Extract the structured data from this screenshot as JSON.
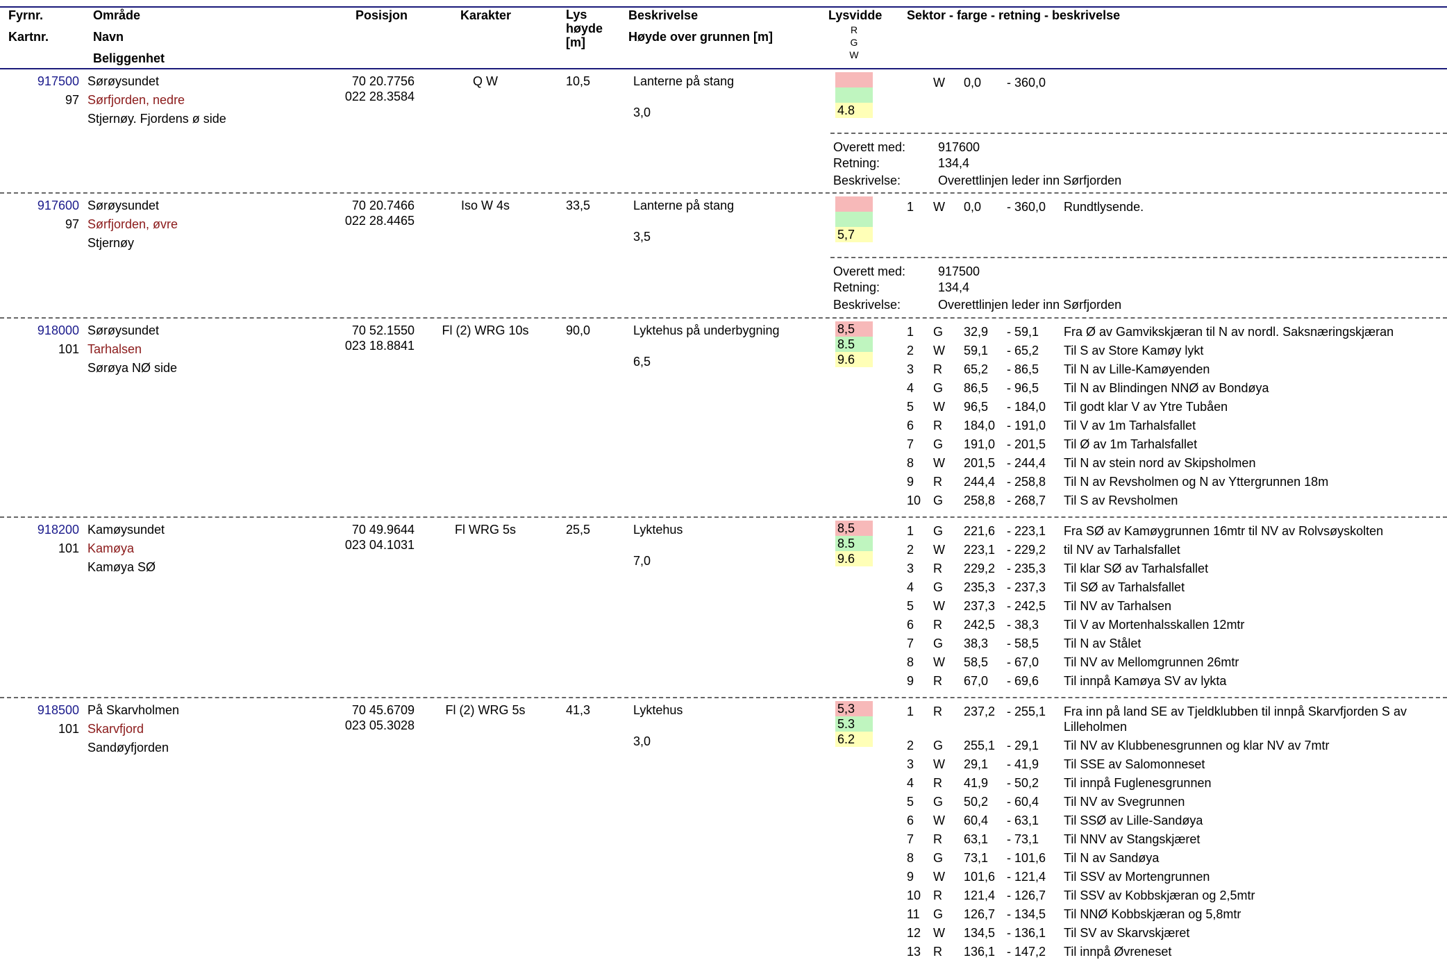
{
  "headers": {
    "fyrnr": "Fyrnr.",
    "kartnr": "Kartnr.",
    "omrade": "Område",
    "navn": "Navn",
    "beliggenhet": "Beliggenhet",
    "posisjon": "Posisjon",
    "karakter": "Karakter",
    "lys1": "Lys",
    "lys2": "høyde",
    "lys3": "[m]",
    "beskrivelse": "Beskrivelse",
    "hoyde": "Høyde over grunnen [m]",
    "lysvidde": "Lysvidde",
    "lysvidde_r": "R",
    "lysvidde_g": "G",
    "lysvidde_w": "W",
    "sektor": "Sektor - farge - retning - beskrivelse"
  },
  "labels": {
    "overett": "Overett med:",
    "retning": "Retning:",
    "beskrivelse": "Beskrivelse:"
  },
  "colors": {
    "header_rule": "#1a1a7a",
    "fyrnr_text": "#1b1b8c",
    "beliggenhet_text": "#8b1a1a",
    "range_red": "#f7b9b9",
    "range_green": "#bff5bf",
    "range_white": "#ffffb7"
  },
  "entries": [
    {
      "fyrnr": "917500",
      "kartnr": "97",
      "omrade": "Sørøysundet",
      "navn": "Sørfjorden, nedre",
      "beliggenhet": "Stjernøy. Fjordens ø side",
      "pos_lat": "70 20.7756",
      "pos_lon": "022 28.3584",
      "karakter": "Q W",
      "lyshoyde": "10,5",
      "beskrivelse": "Lanterne på stang",
      "hoyde": "3,0",
      "range_r": "",
      "range_g": "",
      "range_w": "4.8",
      "sectors": [
        {
          "n": "",
          "c": "W",
          "from": "0,0",
          "to": "- 360,0",
          "desc": ""
        }
      ],
      "overett": {
        "med": "917600",
        "retning": "134,4",
        "beskrivelse": "Overettlinjen leder inn Sørfjorden"
      }
    },
    {
      "fyrnr": "917600",
      "kartnr": "97",
      "omrade": "Sørøysundet",
      "navn": "Sørfjorden, øvre",
      "beliggenhet": "Stjernøy",
      "pos_lat": "70 20.7466",
      "pos_lon": "022 28.4465",
      "karakter": "Iso W 4s",
      "lyshoyde": "33,5",
      "beskrivelse": "Lanterne på stang",
      "hoyde": "3,5",
      "range_r": "",
      "range_g": "",
      "range_w": "5,7",
      "sectors": [
        {
          "n": "1",
          "c": "W",
          "from": "0,0",
          "to": "- 360,0",
          "desc": "Rundtlysende."
        }
      ],
      "overett": {
        "med": "917500",
        "retning": "134,4",
        "beskrivelse": "Overettlinjen leder inn Sørfjorden"
      }
    },
    {
      "fyrnr": "918000",
      "kartnr": "101",
      "omrade": "Sørøysundet",
      "navn": "Tarhalsen",
      "beliggenhet": "Sørøya NØ side",
      "pos_lat": "70 52.1550",
      "pos_lon": "023 18.8841",
      "karakter": "Fl (2) WRG 10s",
      "lyshoyde": "90,0",
      "beskrivelse": "Lyktehus på underbygning",
      "hoyde": "6,5",
      "range_r": "8,5",
      "range_g": "8.5",
      "range_w": "9.6",
      "sectors": [
        {
          "n": "1",
          "c": "G",
          "from": "32,9",
          "to": "- 59,1",
          "desc": "Fra Ø av Gamvikskjæran til N av nordl. Saksnæringskjæran"
        },
        {
          "n": "2",
          "c": "W",
          "from": "59,1",
          "to": "- 65,2",
          "desc": "Til S av Store Kamøy lykt"
        },
        {
          "n": "3",
          "c": "R",
          "from": "65,2",
          "to": "- 86,5",
          "desc": "Til N av Lille-Kamøyenden"
        },
        {
          "n": "4",
          "c": "G",
          "from": "86,5",
          "to": "- 96,5",
          "desc": "Til N av Blindingen NNØ av Bondøya"
        },
        {
          "n": "5",
          "c": "W",
          "from": "96,5",
          "to": "- 184,0",
          "desc": "Til  godt klar V av Ytre Tubåen"
        },
        {
          "n": "6",
          "c": "R",
          "from": "184,0",
          "to": "- 191,0",
          "desc": "Til V av 1m Tarhalsfallet"
        },
        {
          "n": "7",
          "c": "G",
          "from": "191,0",
          "to": "- 201,5",
          "desc": "Til Ø av 1m Tarhalsfallet"
        },
        {
          "n": "8",
          "c": "W",
          "from": "201,5",
          "to": "- 244,4",
          "desc": "Til N av stein nord av Skipsholmen"
        },
        {
          "n": "9",
          "c": "R",
          "from": "244,4",
          "to": "- 258,8",
          "desc": "Til N av Revsholmen og N av Yttergrunnen 18m"
        },
        {
          "n": "10",
          "c": "G",
          "from": "258,8",
          "to": "- 268,7",
          "desc": "Til S av Revsholmen"
        }
      ]
    },
    {
      "fyrnr": "918200",
      "kartnr": "101",
      "omrade": "Kamøysundet",
      "navn": "Kamøya",
      "beliggenhet": "Kamøya SØ",
      "pos_lat": "70 49.9644",
      "pos_lon": "023 04.1031",
      "karakter": "Fl WRG 5s",
      "lyshoyde": "25,5",
      "beskrivelse": "Lyktehus",
      "hoyde": "7,0",
      "range_r": "8,5",
      "range_g": "8.5",
      "range_w": "9.6",
      "sectors": [
        {
          "n": "1",
          "c": "G",
          "from": "221,6",
          "to": "- 223,1",
          "desc": "Fra  SØ av Kamøygrunnen 16mtr  til NV av Rolvsøyskolten"
        },
        {
          "n": "2",
          "c": "W",
          "from": "223,1",
          "to": "- 229,2",
          "desc": "til  NV av Tarhalsfallet"
        },
        {
          "n": "3",
          "c": "R",
          "from": "229,2",
          "to": "- 235,3",
          "desc": "Til klar SØ av Tarhalsfallet"
        },
        {
          "n": "4",
          "c": "G",
          "from": "235,3",
          "to": "- 237,3",
          "desc": "Til SØ av Tarhalsfallet"
        },
        {
          "n": "5",
          "c": "W",
          "from": "237,3",
          "to": "- 242,5",
          "desc": "Til  NV av Tarhalsen"
        },
        {
          "n": "6",
          "c": "R",
          "from": "242,5",
          "to": "- 38,3",
          "desc": "Til V av Mortenhalsskallen 12mtr"
        },
        {
          "n": "7",
          "c": "G",
          "from": "38,3",
          "to": "- 58,5",
          "desc": "Til N av Stålet"
        },
        {
          "n": "8",
          "c": "W",
          "from": "58,5",
          "to": "- 67,0",
          "desc": "Til NV av Mellomgrunnen 26mtr"
        },
        {
          "n": "9",
          "c": "R",
          "from": "67,0",
          "to": "- 69,6",
          "desc": "Til innpå Kamøya SV av lykta"
        }
      ]
    },
    {
      "fyrnr": "918500",
      "kartnr": "101",
      "omrade": "På Skarvholmen",
      "navn": "Skarvfjord",
      "beliggenhet": "Sandøyfjorden",
      "pos_lat": "70 45.6709",
      "pos_lon": "023 05.3028",
      "karakter": "Fl (2) WRG 5s",
      "lyshoyde": "41,3",
      "beskrivelse": "Lyktehus",
      "hoyde": "3,0",
      "range_r": "5,3",
      "range_g": "5.3",
      "range_w": "6.2",
      "sectors": [
        {
          "n": "1",
          "c": "R",
          "from": "237,2",
          "to": "- 255,1",
          "desc": "Fra inn på land SE av Tjeldklubben til innpå Skarvfjorden S av",
          "desc2": "Lilleholmen"
        },
        {
          "n": "2",
          "c": "G",
          "from": "255,1",
          "to": "- 29,1",
          "desc": "Til NV av Klubbenesgrunnen og klar NV av 7mtr"
        },
        {
          "n": "3",
          "c": "W",
          "from": "29,1",
          "to": "- 41,9",
          "desc": "Til SSE av Salomonneset"
        },
        {
          "n": "4",
          "c": "R",
          "from": "41,9",
          "to": "- 50,2",
          "desc": "Til innpå Fuglenesgrunnen"
        },
        {
          "n": "5",
          "c": "G",
          "from": "50,2",
          "to": "- 60,4",
          "desc": "Til NV av Svegrunnen"
        },
        {
          "n": "6",
          "c": "W",
          "from": "60,4",
          "to": "- 63,1",
          "desc": "Til SSØ av Lille-Sandøya"
        },
        {
          "n": "7",
          "c": "R",
          "from": "63,1",
          "to": "- 73,1",
          "desc": "Til NNV av Stangskjæret"
        },
        {
          "n": "8",
          "c": "G",
          "from": "73,1",
          "to": "- 101,6",
          "desc": "Til N av Sandøya"
        },
        {
          "n": "9",
          "c": "W",
          "from": "101,6",
          "to": "- 121,4",
          "desc": "Til SSV av Mortengrunnen"
        },
        {
          "n": "10",
          "c": "R",
          "from": "121,4",
          "to": "- 126,7",
          "desc": "Til SSV av Kobbskjæran og 2,5mtr"
        },
        {
          "n": "11",
          "c": "G",
          "from": "126,7",
          "to": "- 134,5",
          "desc": "Til NNØ Kobbskjæran og 5,8mtr"
        },
        {
          "n": "12",
          "c": "W",
          "from": "134,5",
          "to": "- 136,1",
          "desc": "Til SV av Skarvskjæret"
        },
        {
          "n": "13",
          "c": "R",
          "from": "136,1",
          "to": "- 147,2",
          "desc": "Til innpå Øvreneset"
        }
      ]
    }
  ]
}
